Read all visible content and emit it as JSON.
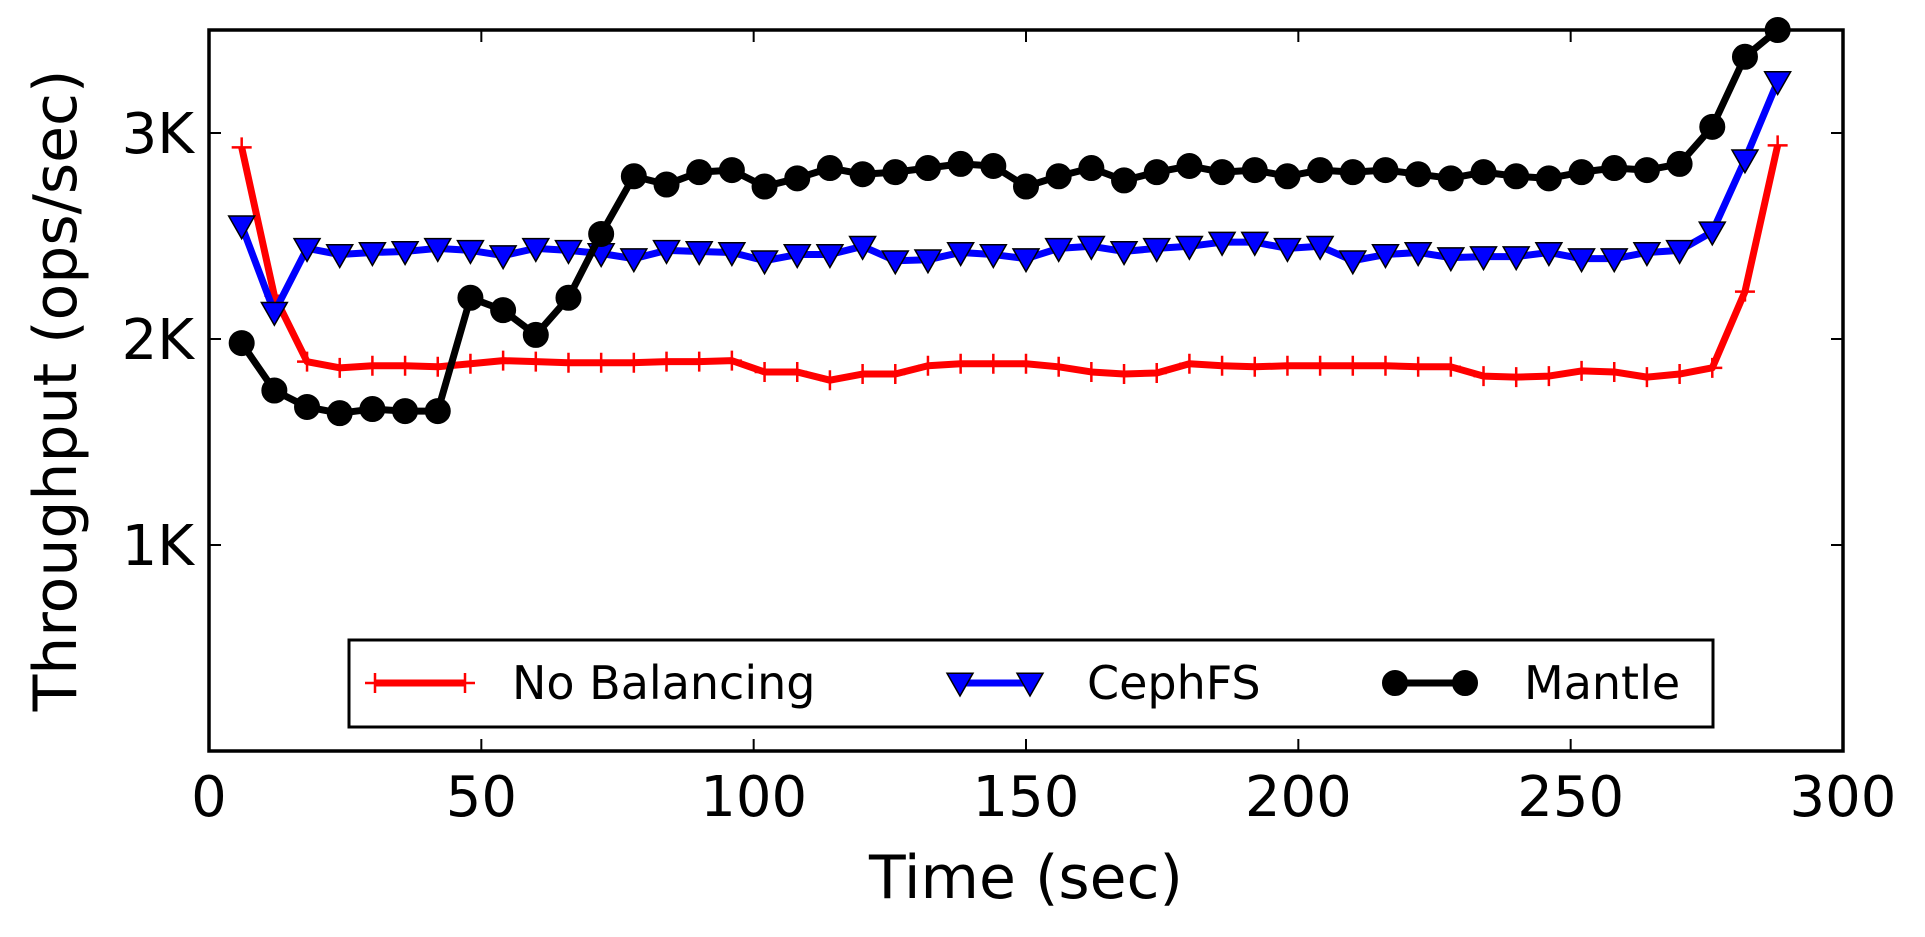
{
  "chart_data": {
    "type": "line",
    "title": "",
    "xlabel": "Time (sec)",
    "ylabel": "Throughput (ops/sec)",
    "xlim": [
      0,
      300
    ],
    "ylim": [
      0,
      3500
    ],
    "x_ticks": [
      {
        "value": 0,
        "label": "0"
      },
      {
        "value": 50,
        "label": "50"
      },
      {
        "value": 100,
        "label": "100"
      },
      {
        "value": 150,
        "label": "150"
      },
      {
        "value": 200,
        "label": "200"
      },
      {
        "value": 250,
        "label": "250"
      },
      {
        "value": 300,
        "label": "300"
      }
    ],
    "y_ticks": [
      {
        "value": 1000,
        "label": "1K"
      },
      {
        "value": 2000,
        "label": "2K"
      },
      {
        "value": 3000,
        "label": "3K"
      }
    ],
    "grid": false,
    "legend_position": "bottom-center",
    "x": [
      6,
      12,
      18,
      24,
      30,
      36,
      42,
      48,
      54,
      60,
      66,
      72,
      78,
      84,
      90,
      96,
      102,
      108,
      114,
      120,
      126,
      132,
      138,
      144,
      150,
      156,
      162,
      168,
      174,
      180,
      186,
      192,
      198,
      204,
      210,
      216,
      222,
      228,
      234,
      240,
      246,
      252,
      258,
      264,
      270,
      276,
      282,
      288
    ],
    "series": [
      {
        "name": "No Balancing",
        "color": "#ff0000",
        "marker": "plus",
        "values": [
          2930,
          2210,
          1890,
          1860,
          1870,
          1870,
          1865,
          1880,
          1895,
          1890,
          1885,
          1885,
          1885,
          1890,
          1890,
          1895,
          1840,
          1840,
          1800,
          1830,
          1830,
          1870,
          1880,
          1880,
          1880,
          1865,
          1840,
          1830,
          1835,
          1880,
          1870,
          1865,
          1870,
          1870,
          1870,
          1870,
          1865,
          1865,
          1820,
          1815,
          1820,
          1845,
          1840,
          1815,
          1830,
          1860,
          2230,
          2940
        ]
      },
      {
        "name": "CephFS",
        "color": "#0000ff",
        "marker": "triangle-down",
        "values": [
          2550,
          2130,
          2440,
          2410,
          2420,
          2425,
          2440,
          2430,
          2405,
          2440,
          2430,
          2415,
          2390,
          2430,
          2425,
          2420,
          2380,
          2410,
          2410,
          2450,
          2380,
          2385,
          2420,
          2410,
          2390,
          2440,
          2450,
          2425,
          2440,
          2450,
          2470,
          2470,
          2440,
          2450,
          2380,
          2410,
          2420,
          2395,
          2400,
          2400,
          2420,
          2390,
          2390,
          2420,
          2430,
          2520,
          2870,
          3250
        ]
      },
      {
        "name": "Mantle",
        "color": "#000000",
        "marker": "circle",
        "values": [
          1980,
          1750,
          1670,
          1640,
          1660,
          1650,
          1650,
          2200,
          2140,
          2020,
          2200,
          2510,
          2790,
          2750,
          2810,
          2820,
          2740,
          2780,
          2830,
          2800,
          2810,
          2830,
          2850,
          2840,
          2740,
          2790,
          2830,
          2770,
          2810,
          2840,
          2810,
          2820,
          2790,
          2820,
          2810,
          2820,
          2800,
          2780,
          2810,
          2790,
          2780,
          2810,
          2830,
          2820,
          2850,
          3030,
          3370,
          3500
        ]
      }
    ]
  }
}
